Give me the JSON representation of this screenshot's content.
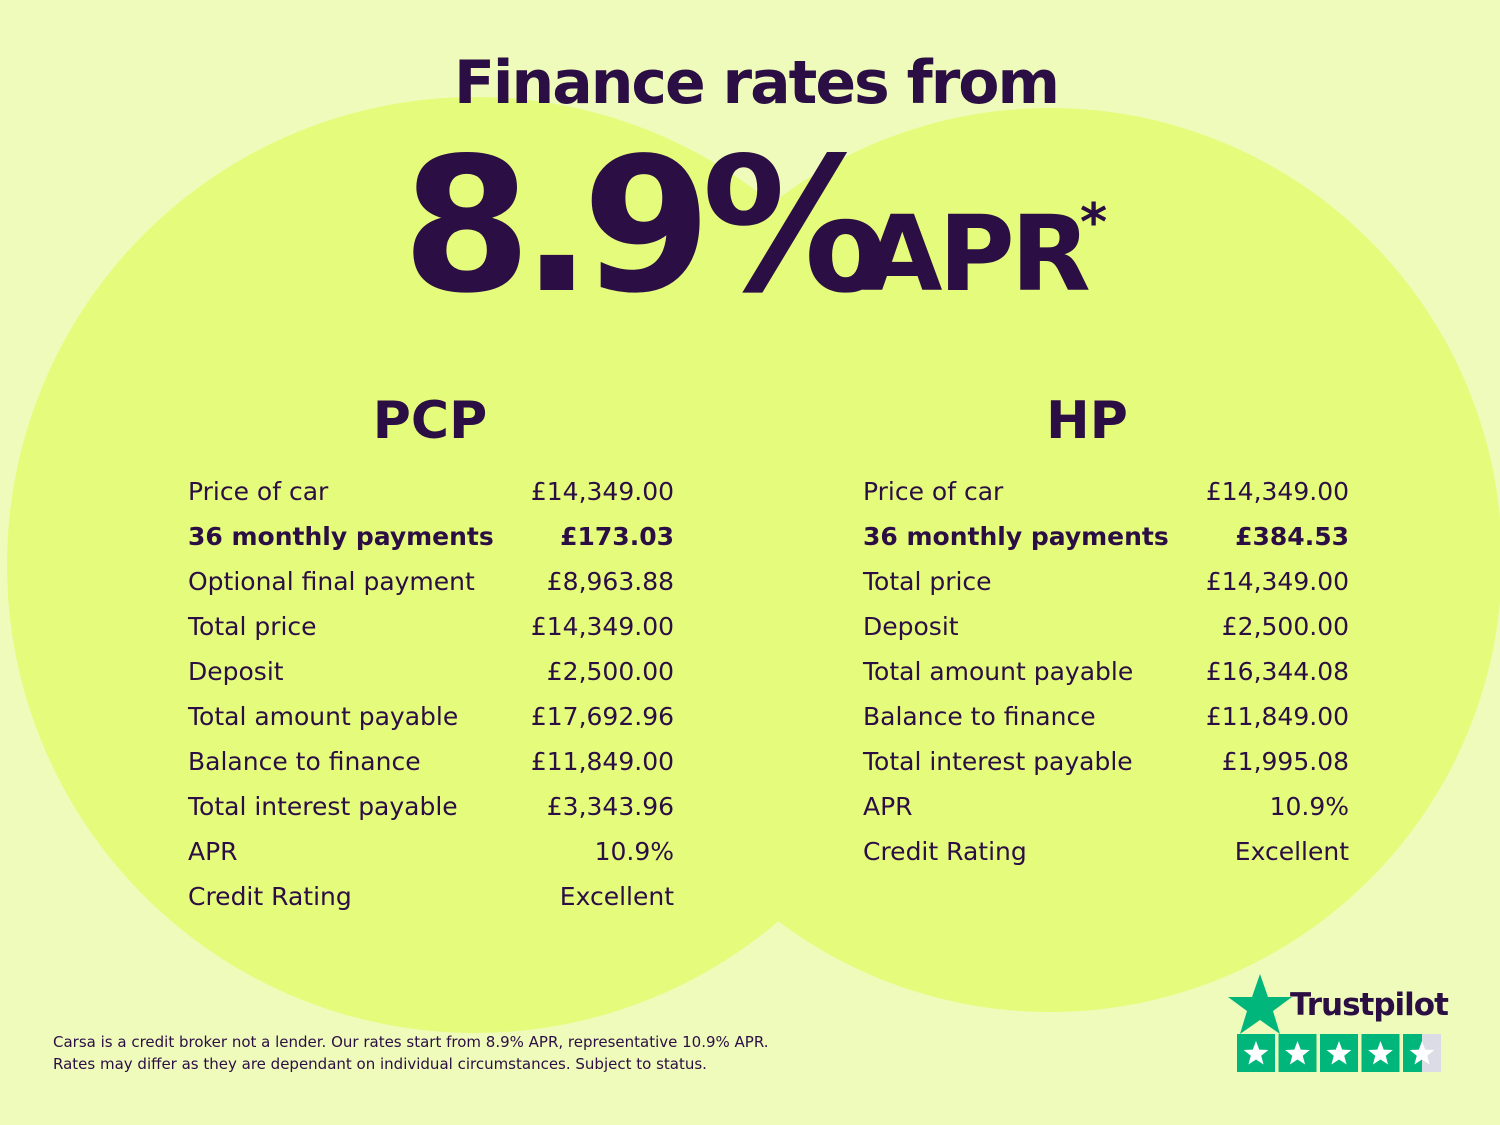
{
  "header": {
    "title": "Finance rates from",
    "rate": "8.9%",
    "suffix": "APR",
    "asterisk": "*"
  },
  "tables": [
    {
      "title": "PCP",
      "rows": [
        [
          "Price of car",
          "£14,349.00"
        ],
        [
          "36 monthly payments",
          "£173.03"
        ],
        [
          "Optional final payment",
          "£8,963.88"
        ],
        [
          "Total price",
          "£14,349.00"
        ],
        [
          "Deposit",
          "£2,500.00"
        ],
        [
          "Total amount payable",
          "£17,692.96"
        ],
        [
          "Balance to finance",
          "£11,849.00"
        ],
        [
          "Total interest payable",
          "£3,343.96"
        ],
        [
          "APR",
          "10.9%"
        ],
        [
          "Credit Rating",
          "Excellent"
        ]
      ]
    },
    {
      "title": "HP",
      "rows": [
        [
          "Price of car",
          "£14,349.00"
        ],
        [
          "36 monthly payments",
          "£384.53"
        ],
        [
          "Total price",
          "£14,349.00"
        ],
        [
          "Deposit",
          "£2,500.00"
        ],
        [
          "Total amount payable",
          "£16,344.08"
        ],
        [
          "Balance to finance",
          "£11,849.00"
        ],
        [
          "Total interest payable",
          "£1,995.08"
        ],
        [
          "APR",
          "10.9%"
        ],
        [
          "Credit Rating",
          "Excellent"
        ]
      ]
    }
  ],
  "footer": {
    "lines": [
      "Carsa is a credit broker not a lender. Our rates start from 8.9% APR, representative 10.9% APR.",
      "Rates may differ as they are dependant on individual circumstances. Subject to status."
    ]
  },
  "trustpilot": {
    "label": "Trustpilot"
  }
}
